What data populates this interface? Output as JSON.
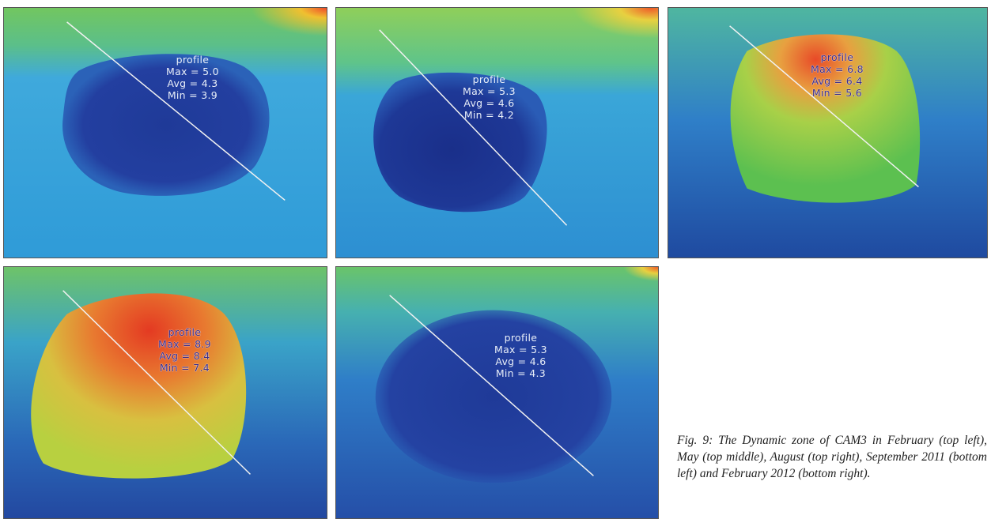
{
  "panels": [
    {
      "id": "feb-2011",
      "label": "profile",
      "max": "Max = 5.0",
      "avg": "Avg = 4.3",
      "min": "Min = 3.9"
    },
    {
      "id": "may-2011",
      "label": "profile",
      "max": "Max = 5.3",
      "avg": "Avg = 4.6",
      "min": "Min = 4.2"
    },
    {
      "id": "aug-2011",
      "label": "profile",
      "max": "Max = 6.8",
      "avg": "Avg = 6.4",
      "min": "Min = 5.6"
    },
    {
      "id": "sep-2011",
      "label": "profile",
      "max": "Max = 8.9",
      "avg": "Avg = 8.4",
      "min": "Min = 7.4"
    },
    {
      "id": "feb-2012",
      "label": "profile",
      "max": "Max = 5.3",
      "avg": "Avg = 4.6",
      "min": "Min = 4.3"
    }
  ],
  "caption": "Fig. 9: The Dynamic zone of CAM3 in February (top left), May (top middle), August (top right), September 2011 (bottom left) and February 2012 (bottom right).",
  "colors": {
    "cold": "#1f3f9a",
    "cool": "#2e8fd6",
    "mid": "#5fc46a",
    "warm": "#e2e04a",
    "hot": "#e84a25"
  }
}
